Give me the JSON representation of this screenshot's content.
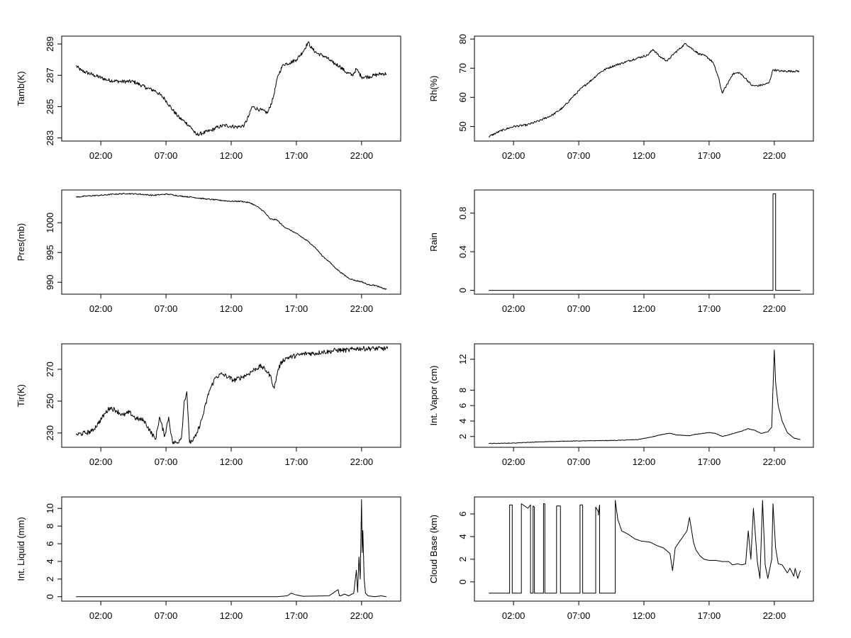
{
  "chart_data": [
    {
      "id": "tamb",
      "type": "line",
      "ylabel": "Tamb(K)",
      "xticks": [
        "02:00",
        "07:00",
        "12:00",
        "17:00",
        "22:00"
      ],
      "xtick_hours": [
        2,
        7,
        12,
        17,
        22
      ],
      "xlim": [
        -1.0,
        25.0
      ],
      "yticks": [
        283,
        285,
        287,
        289
      ],
      "ylim": [
        282.8,
        289.5
      ],
      "noise": 0.12,
      "x": [
        0.1,
        0.5,
        1.5,
        2.5,
        3.5,
        4.5,
        5.5,
        6.2,
        6.9,
        7.5,
        8.0,
        8.5,
        9.0,
        9.3,
        9.8,
        10.5,
        11.0,
        11.5,
        12.5,
        13.0,
        13.4,
        13.6,
        14.2,
        14.8,
        15.2,
        15.6,
        16.0,
        16.5,
        17.0,
        17.5,
        17.9,
        18.2,
        18.6,
        19.2,
        19.8,
        20.3,
        20.8,
        21.3,
        21.6,
        22.0,
        22.5,
        23.0,
        23.5,
        23.9
      ],
      "y": [
        287.6,
        287.3,
        287.0,
        286.7,
        286.6,
        286.6,
        286.2,
        286.0,
        285.5,
        284.8,
        284.3,
        284.0,
        283.6,
        283.2,
        283.3,
        283.5,
        283.7,
        283.8,
        283.7,
        283.8,
        284.5,
        285.0,
        284.8,
        284.6,
        285.5,
        287.0,
        287.7,
        287.8,
        288.0,
        288.5,
        289.1,
        288.7,
        288.4,
        288.2,
        287.8,
        287.6,
        287.2,
        287.0,
        287.4,
        286.9,
        286.9,
        287.0,
        287.1,
        287.1
      ]
    },
    {
      "id": "rh",
      "type": "line",
      "ylabel": "Rh(%)",
      "xticks": [
        "02:00",
        "07:00",
        "12:00",
        "17:00",
        "22:00"
      ],
      "xtick_hours": [
        2,
        7,
        12,
        17,
        22
      ],
      "xlim": [
        -1.0,
        25.0
      ],
      "yticks": [
        50,
        60,
        70,
        80
      ],
      "ylim": [
        45.0,
        81.0
      ],
      "noise": 0.35,
      "x": [
        0.1,
        1.0,
        2.0,
        3.0,
        4.0,
        5.0,
        5.8,
        6.5,
        7.3,
        8.0,
        8.6,
        9.2,
        9.8,
        10.5,
        11.5,
        12.3,
        12.7,
        13.2,
        13.8,
        14.3,
        14.7,
        15.2,
        15.6,
        16.2,
        16.8,
        17.3,
        17.7,
        18.0,
        18.4,
        18.8,
        19.3,
        19.8,
        20.3,
        20.8,
        21.3,
        21.6,
        21.9,
        22.5,
        23.2,
        23.9
      ],
      "y": [
        46.5,
        48.5,
        50.0,
        50.5,
        52.0,
        54.0,
        56.5,
        60.0,
        63.5,
        66.0,
        68.5,
        70.0,
        71.0,
        72.0,
        73.5,
        74.5,
        76.5,
        74.0,
        72.5,
        75.0,
        76.5,
        78.5,
        77.0,
        75.0,
        74.0,
        72.0,
        67.0,
        61.5,
        64.5,
        68.0,
        68.5,
        66.5,
        64.0,
        64.0,
        64.5,
        65.0,
        69.5,
        69.0,
        69.0,
        69.0
      ]
    },
    {
      "id": "pres",
      "type": "line",
      "ylabel": "Pres(mb)",
      "xticks": [
        "02:00",
        "07:00",
        "12:00",
        "17:00",
        "22:00"
      ],
      "xtick_hours": [
        2,
        7,
        12,
        17,
        22
      ],
      "xlim": [
        -1.0,
        25.0
      ],
      "yticks": [
        990,
        995,
        1000
      ],
      "ylim": [
        988.0,
        1005.5
      ],
      "noise": 0.1,
      "x": [
        0.1,
        1.0,
        2.0,
        3.0,
        4.0,
        5.0,
        6.0,
        7.0,
        7.5,
        8.0,
        9.0,
        10.0,
        11.0,
        12.0,
        12.8,
        13.5,
        14.0,
        14.5,
        15.0,
        15.5,
        16.0,
        17.0,
        18.0,
        18.5,
        19.0,
        19.5,
        20.0,
        20.5,
        21.0,
        21.5,
        22.0,
        22.5,
        23.0,
        23.5,
        23.9
      ],
      "y": [
        1004.3,
        1004.5,
        1004.6,
        1004.8,
        1004.9,
        1004.8,
        1004.6,
        1004.8,
        1004.7,
        1004.5,
        1004.3,
        1004.0,
        1003.8,
        1003.6,
        1003.6,
        1003.3,
        1002.7,
        1001.9,
        1000.6,
        1000.5,
        999.4,
        998.2,
        996.7,
        995.7,
        994.4,
        993.5,
        992.4,
        991.5,
        990.7,
        990.3,
        990.1,
        989.6,
        989.5,
        989.1,
        988.8
      ]
    },
    {
      "id": "rain",
      "type": "line",
      "ylabel": "Rain",
      "xticks": [
        "02:00",
        "07:00",
        "12:00",
        "17:00",
        "22:00"
      ],
      "xtick_hours": [
        2,
        7,
        12,
        17,
        22
      ],
      "xlim": [
        -1.0,
        25.0
      ],
      "yticks": [
        0.0,
        0.4,
        0.8
      ],
      "ylim": [
        -0.04,
        1.04
      ],
      "noise": 0,
      "x": [
        0.1,
        21.9,
        21.9,
        22.1,
        22.1,
        24.0
      ],
      "y": [
        0.0,
        0.0,
        1.0,
        1.0,
        0.0,
        0.0
      ]
    },
    {
      "id": "tir",
      "type": "line",
      "ylabel": "Tir(K)",
      "xticks": [
        "02:00",
        "07:00",
        "12:00",
        "17:00",
        "22:00"
      ],
      "xtick_hours": [
        2,
        7,
        12,
        17,
        22
      ],
      "xlim": [
        -1.0,
        25.0
      ],
      "yticks": [
        230,
        250,
        270
      ],
      "ylim": [
        221.0,
        286.0
      ],
      "noise": 1.5,
      "x": [
        0.1,
        0.8,
        1.3,
        1.8,
        2.3,
        2.7,
        3.2,
        3.7,
        4.2,
        4.7,
        5.3,
        5.8,
        6.2,
        6.5,
        6.9,
        7.2,
        7.5,
        7.9,
        8.2,
        8.4,
        8.6,
        8.8,
        9.0,
        9.3,
        9.8,
        10.3,
        10.8,
        11.3,
        11.8,
        12.2,
        12.8,
        13.3,
        13.8,
        14.3,
        14.7,
        15.0,
        15.3,
        15.6,
        15.9,
        16.2,
        16.7,
        17.2,
        17.8,
        18.5,
        19.0,
        19.5,
        20.0,
        20.5,
        21.0,
        21.5,
        22.0,
        22.5,
        23.0,
        23.5,
        24.0
      ],
      "y": [
        229,
        230,
        231,
        236,
        242,
        246,
        244,
        241,
        243,
        239,
        238,
        231,
        226,
        240,
        228,
        240,
        224,
        224,
        228,
        250,
        256,
        224,
        225,
        228,
        240,
        256,
        265,
        267,
        265,
        263,
        265,
        267,
        270,
        272,
        269,
        266,
        258,
        270,
        275,
        277,
        278,
        279,
        280,
        280,
        281,
        281,
        282,
        282,
        282,
        283,
        283,
        283,
        283,
        283,
        283
      ]
    },
    {
      "id": "vapor",
      "type": "line",
      "ylabel": "Int. Vapor (cm)",
      "xticks": [
        "02:00",
        "07:00",
        "12:00",
        "17:00",
        "22:00"
      ],
      "xtick_hours": [
        2,
        7,
        12,
        17,
        22
      ],
      "xlim": [
        -1.0,
        25.0
      ],
      "yticks": [
        2,
        4,
        6,
        8,
        12
      ],
      "ylim": [
        0.6,
        14.0
      ],
      "noise": 0.03,
      "x": [
        0.1,
        2.0,
        4.0,
        6.0,
        8.0,
        10.0,
        11.5,
        12.5,
        13.5,
        14.0,
        14.5,
        15.5,
        16.0,
        17.0,
        17.5,
        18.0,
        18.7,
        19.5,
        20.0,
        20.5,
        21.0,
        21.5,
        21.8,
        22.0,
        22.1,
        22.3,
        22.6,
        23.0,
        23.5,
        24.0
      ],
      "y": [
        1.1,
        1.15,
        1.3,
        1.4,
        1.45,
        1.5,
        1.6,
        1.9,
        2.3,
        2.4,
        2.2,
        2.1,
        2.3,
        2.5,
        2.4,
        2.0,
        2.3,
        2.7,
        3.0,
        2.8,
        2.4,
        2.6,
        3.2,
        13.2,
        9.0,
        6.0,
        4.0,
        2.5,
        1.8,
        1.6
      ]
    },
    {
      "id": "liquid",
      "type": "line",
      "ylabel": "Int. Liquid (mm)",
      "xticks": [
        "02:00",
        "07:00",
        "12:00",
        "17:00",
        "22:00"
      ],
      "xtick_hours": [
        2,
        7,
        12,
        17,
        22
      ],
      "xlim": [
        -1.0,
        25.0
      ],
      "yticks": [
        0,
        2,
        4,
        6,
        8,
        10
      ],
      "ylim": [
        -0.5,
        11.3
      ],
      "noise": 0,
      "x": [
        0.1,
        15.5,
        16.3,
        16.6,
        17.0,
        17.5,
        19.5,
        20.2,
        20.3,
        20.4,
        20.7,
        21.0,
        21.4,
        21.6,
        21.7,
        21.8,
        21.9,
        22.0,
        22.05,
        22.1,
        22.2,
        22.3,
        22.5,
        23.0,
        23.5,
        23.9
      ],
      "y": [
        0.0,
        0.0,
        0.1,
        0.4,
        0.2,
        0.05,
        0.1,
        0.8,
        0.1,
        0.1,
        0.3,
        0.1,
        0.4,
        3.0,
        0.5,
        4.5,
        2.0,
        11.0,
        5.0,
        7.5,
        2.0,
        0.4,
        0.1,
        0.0,
        0.1,
        0.0
      ]
    },
    {
      "id": "cloudbase",
      "type": "line",
      "ylabel": "Cloud Base (km)",
      "xticks": [
        "02:00",
        "07:00",
        "12:00",
        "17:00",
        "22:00"
      ],
      "xtick_hours": [
        2,
        7,
        12,
        17,
        22
      ],
      "xlim": [
        -1.0,
        25.0
      ],
      "yticks": [
        0,
        2,
        4,
        6
      ],
      "ylim": [
        -1.7,
        7.5
      ],
      "noise": 0,
      "x": [
        0.1,
        1.7,
        1.7,
        1.9,
        1.9,
        2.6,
        2.6,
        3.1,
        3.3,
        3.3,
        3.5,
        3.5,
        3.6,
        3.6,
        4.3,
        4.3,
        4.4,
        4.4,
        5.3,
        5.3,
        5.6,
        5.6,
        5.8,
        5.8,
        7.1,
        7.1,
        7.3,
        7.3,
        8.3,
        8.3,
        8.5,
        8.5,
        8.6,
        8.6,
        9.8,
        9.8,
        10.0,
        10.3,
        10.8,
        11.3,
        11.8,
        12.5,
        13.0,
        13.5,
        14.0,
        14.2,
        14.4,
        14.7,
        15.0,
        15.3,
        15.5,
        15.8,
        16.0,
        16.3,
        16.6,
        17.0,
        17.5,
        18.0,
        18.5,
        18.8,
        19.2,
        19.5,
        19.8,
        20.0,
        20.2,
        20.4,
        20.7,
        20.9,
        21.1,
        21.3,
        21.5,
        21.8,
        21.9,
        22.1,
        22.3,
        22.6,
        23.0,
        23.2,
        23.5,
        23.6,
        23.8,
        24.0
      ],
      "y": [
        -1.0,
        -1.0,
        6.8,
        6.8,
        -1.0,
        -1.0,
        6.9,
        6.5,
        6.8,
        -1.0,
        -1.0,
        6.7,
        6.6,
        -1.0,
        -1.0,
        6.9,
        6.9,
        -1.0,
        -1.0,
        6.7,
        6.7,
        -1.0,
        -1.0,
        -1.0,
        -1.0,
        6.8,
        6.8,
        -1.0,
        -1.0,
        6.6,
        6.2,
        5.9,
        6.8,
        -1.0,
        -1.0,
        7.2,
        5.5,
        4.5,
        4.2,
        3.8,
        3.6,
        3.5,
        3.2,
        3.0,
        2.5,
        1.0,
        3.0,
        3.5,
        4.0,
        4.5,
        5.7,
        3.5,
        2.8,
        2.3,
        2.0,
        1.9,
        1.9,
        1.8,
        1.8,
        1.5,
        1.6,
        1.5,
        1.6,
        4.5,
        2.0,
        6.5,
        1.8,
        0.3,
        7.2,
        1.5,
        0.3,
        2.0,
        6.9,
        3.0,
        1.6,
        1.5,
        0.8,
        1.2,
        0.5,
        1.2,
        0.3,
        1.0
      ]
    }
  ]
}
